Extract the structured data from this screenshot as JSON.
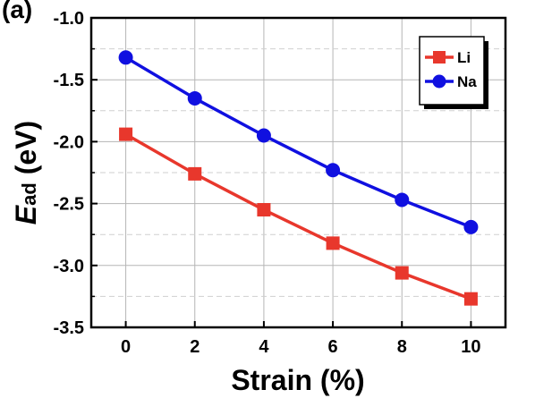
{
  "chart_data": {
    "type": "line",
    "panel_label": "(a)",
    "xlabel": "Strain (%)",
    "ylabel_main": "E",
    "ylabel_sub": "ad",
    "ylabel_unit": " (eV)",
    "x": [
      0,
      2,
      4,
      6,
      8,
      10
    ],
    "xlim": [
      -1,
      11
    ],
    "ylim": [
      -3.5,
      -1.0
    ],
    "xticks": [
      "0",
      "2",
      "4",
      "6",
      "8",
      "10"
    ],
    "yticks": [
      "-1.0",
      "-1.5",
      "-2.0",
      "-2.5",
      "-3.0",
      "-3.5"
    ],
    "grid": true,
    "legend_position": "top-right",
    "series": [
      {
        "name": "Li",
        "color": "#e8372c",
        "marker": "square",
        "values": [
          -1.94,
          -2.26,
          -2.55,
          -2.82,
          -3.06,
          -3.27
        ]
      },
      {
        "name": "Na",
        "color": "#1010e0",
        "marker": "circle",
        "values": [
          -1.32,
          -1.65,
          -1.95,
          -2.23,
          -2.47,
          -2.69
        ]
      }
    ]
  }
}
